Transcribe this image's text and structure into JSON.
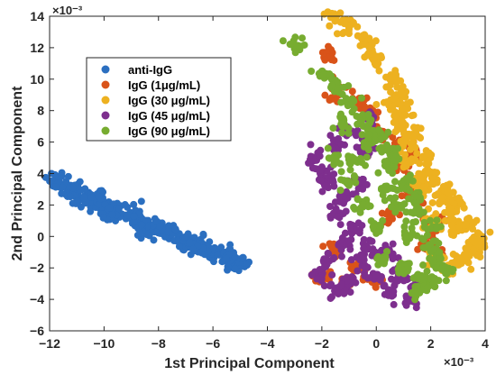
{
  "chart_data": {
    "type": "scatter",
    "xlabel": "1st Principal Component",
    "ylabel": "2nd Principal Component",
    "x_scale_label": "×10⁻³",
    "y_scale_label": "×10⁻³",
    "xlim": [
      -12,
      4
    ],
    "ylim": [
      -6,
      14
    ],
    "x_ticks": [
      -12,
      -10,
      -8,
      -6,
      -4,
      -2,
      0,
      2,
      4
    ],
    "y_ticks": [
      -6,
      -4,
      -2,
      0,
      2,
      4,
      6,
      8,
      10,
      12,
      14
    ],
    "x_tick_labels": [
      "−12",
      "−10",
      "−8",
      "−6",
      "−4",
      "−2",
      "0",
      "2",
      "4"
    ],
    "y_tick_labels": [
      "−6",
      "−4",
      "−2",
      "0",
      "2",
      "4",
      "6",
      "8",
      "10",
      "12",
      "14"
    ],
    "grid": false,
    "legend_position": "upper-left",
    "series": [
      {
        "name": "anti-IgG",
        "color": "#2b6fc0",
        "points": [
          [
            -11.8,
            3.6
          ],
          [
            -11.5,
            3.3
          ],
          [
            -11.2,
            3.1
          ],
          [
            -11.0,
            2.9
          ],
          [
            -10.7,
            2.6
          ],
          [
            -10.4,
            2.3
          ],
          [
            -10.0,
            2.0
          ],
          [
            -9.6,
            1.7
          ],
          [
            -9.2,
            1.3
          ],
          [
            -8.8,
            1.0
          ],
          [
            -8.4,
            0.7
          ],
          [
            -8.0,
            0.4
          ],
          [
            -7.6,
            0.1
          ],
          [
            -7.2,
            -0.2
          ],
          [
            -6.8,
            -0.5
          ],
          [
            -6.4,
            -0.8
          ],
          [
            -6.0,
            -1.1
          ],
          [
            -5.6,
            -1.3
          ],
          [
            -5.2,
            -1.5
          ],
          [
            -4.9,
            -1.7
          ],
          [
            -11.0,
            2.5
          ],
          [
            -10.2,
            2.4
          ],
          [
            -9.0,
            1.5
          ],
          [
            -7.8,
            0.6
          ],
          [
            -7.0,
            -0.4
          ],
          [
            -6.2,
            -1.0
          ],
          [
            -5.4,
            -1.2
          ],
          [
            -8.6,
            0.5
          ],
          [
            -9.8,
            1.6
          ],
          [
            -6.6,
            -0.3
          ]
        ]
      },
      {
        "name": "IgG (1μg/mL)",
        "color": "#d95319",
        "points": [
          [
            -1.8,
            11.6
          ],
          [
            -0.5,
            8.5
          ],
          [
            0.2,
            6.5
          ],
          [
            1.0,
            4.5
          ],
          [
            1.5,
            2.5
          ],
          [
            2.0,
            0.5
          ],
          [
            2.2,
            -1.0
          ],
          [
            -1.5,
            9.0
          ],
          [
            0.8,
            6.0
          ],
          [
            1.2,
            3.0
          ],
          [
            -0.8,
            -2.0
          ],
          [
            -1.2,
            -3.0
          ],
          [
            -2.0,
            -2.5
          ],
          [
            1.8,
            -0.5
          ],
          [
            2.3,
            1.0
          ],
          [
            0.5,
            1.2
          ],
          [
            -0.2,
            7.8
          ],
          [
            1.4,
            5.2
          ],
          [
            0.0,
            -2.7
          ],
          [
            -1.6,
            -0.8
          ]
        ]
      },
      {
        "name": "IgG (30 μg/mL)",
        "color": "#edb120",
        "points": [
          [
            -1.5,
            13.8
          ],
          [
            -1.0,
            13.2
          ],
          [
            -0.5,
            12.5
          ],
          [
            0.0,
            11.2
          ],
          [
            0.5,
            10.0
          ],
          [
            0.8,
            9.0
          ],
          [
            1.0,
            8.0
          ],
          [
            1.4,
            6.5
          ],
          [
            1.7,
            5.0
          ],
          [
            2.0,
            4.0
          ],
          [
            2.5,
            3.0
          ],
          [
            3.0,
            2.0
          ],
          [
            3.4,
            1.0
          ],
          [
            3.8,
            0.0
          ],
          [
            3.8,
            -1.0
          ],
          [
            3.2,
            -1.5
          ],
          [
            2.6,
            -2.0
          ],
          [
            2.2,
            -1.5
          ],
          [
            1.5,
            3.5
          ],
          [
            1.0,
            6.0
          ],
          [
            0.5,
            8.5
          ],
          [
            2.8,
            1.5
          ],
          [
            3.5,
            -0.5
          ],
          [
            2.0,
            1.0
          ],
          [
            1.2,
            4.8
          ],
          [
            -0.2,
            12.0
          ],
          [
            3.0,
            0.5
          ],
          [
            2.4,
            2.5
          ],
          [
            1.8,
            3.2
          ],
          [
            0.8,
            7.2
          ]
        ]
      },
      {
        "name": "IgG (45 μg/mL)",
        "color": "#7e2f8e",
        "points": [
          [
            -2.2,
            5.0
          ],
          [
            -1.5,
            5.8
          ],
          [
            -1.0,
            6.8
          ],
          [
            -0.5,
            5.5
          ],
          [
            -2.0,
            4.0
          ],
          [
            -1.8,
            3.5
          ],
          [
            -1.2,
            2.5
          ],
          [
            -1.5,
            1.5
          ],
          [
            -0.8,
            0.5
          ],
          [
            -1.2,
            -0.5
          ],
          [
            -0.5,
            -1.5
          ],
          [
            0.0,
            -2.5
          ],
          [
            0.5,
            -3.5
          ],
          [
            1.2,
            -4.0
          ],
          [
            1.5,
            -3.2
          ],
          [
            -1.0,
            -2.8
          ],
          [
            -2.0,
            -2.5
          ],
          [
            -1.5,
            -3.4
          ],
          [
            0.8,
            -2.0
          ],
          [
            -0.3,
            -0.8
          ],
          [
            -0.2,
            7.5
          ],
          [
            -0.6,
            3.2
          ],
          [
            0.3,
            -1.0
          ],
          [
            1.0,
            -2.8
          ],
          [
            -1.8,
            -1.5
          ]
        ]
      },
      {
        "name": "IgG (90 μg/mL)",
        "color": "#77ac30",
        "points": [
          [
            -3.0,
            12.0
          ],
          [
            -2.0,
            10.5
          ],
          [
            -1.5,
            9.5
          ],
          [
            -1.0,
            8.5
          ],
          [
            -0.5,
            7.5
          ],
          [
            0.0,
            6.5
          ],
          [
            0.5,
            5.5
          ],
          [
            0.5,
            4.5
          ],
          [
            1.0,
            3.5
          ],
          [
            1.5,
            2.5
          ],
          [
            1.5,
            1.5
          ],
          [
            2.0,
            0.5
          ],
          [
            2.0,
            -0.5
          ],
          [
            2.2,
            -1.5
          ],
          [
            2.5,
            -2.2
          ],
          [
            1.8,
            -2.5
          ],
          [
            1.0,
            -2.0
          ],
          [
            0.2,
            -1.5
          ],
          [
            0.0,
            0.5
          ],
          [
            -0.5,
            2.0
          ],
          [
            -1.0,
            3.5
          ],
          [
            -1.5,
            5.0
          ],
          [
            1.5,
            -3.5
          ],
          [
            2.0,
            -3.0
          ],
          [
            -0.3,
            6.0
          ],
          [
            0.8,
            2.0
          ],
          [
            1.2,
            0.0
          ],
          [
            -0.8,
            4.8
          ],
          [
            0.4,
            3.0
          ],
          [
            -1.2,
            7.0
          ]
        ]
      }
    ]
  }
}
